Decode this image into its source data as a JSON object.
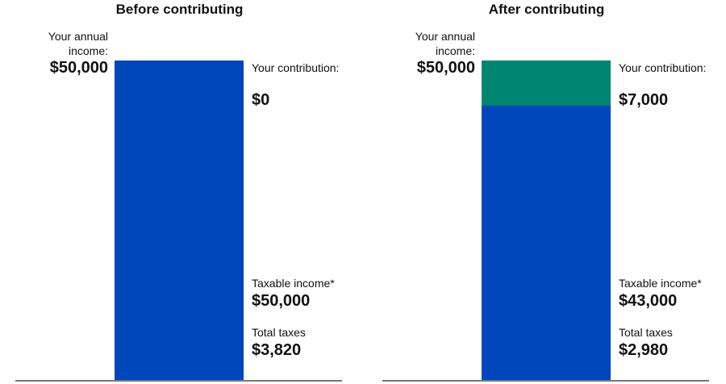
{
  "colors": {
    "income": "#0047BB",
    "contribution": "#008570",
    "baseline": "#777777"
  },
  "chart_data": [
    {
      "type": "bar",
      "stacked": true,
      "title": "Before contributing",
      "total_label": "Your annual income:",
      "total": 50000,
      "total_text": "$50,000",
      "series": [
        {
          "name": "Taxable income*",
          "value": 50000,
          "value_text": "$50,000"
        },
        {
          "name": "Your contribution:",
          "value": 0,
          "value_text": "$0"
        }
      ],
      "taxes_label": "Total taxes",
      "taxes_text": "$3,820"
    },
    {
      "type": "bar",
      "stacked": true,
      "title": "After contributing",
      "total_label": "Your annual income:",
      "total": 50000,
      "total_text": "$50,000",
      "series": [
        {
          "name": "Taxable income*",
          "value": 43000,
          "value_text": "$43,000"
        },
        {
          "name": "Your contribution:",
          "value": 7000,
          "value_text": "$7,000"
        }
      ],
      "taxes_label": "Total taxes",
      "taxes_text": "$2,980"
    }
  ]
}
